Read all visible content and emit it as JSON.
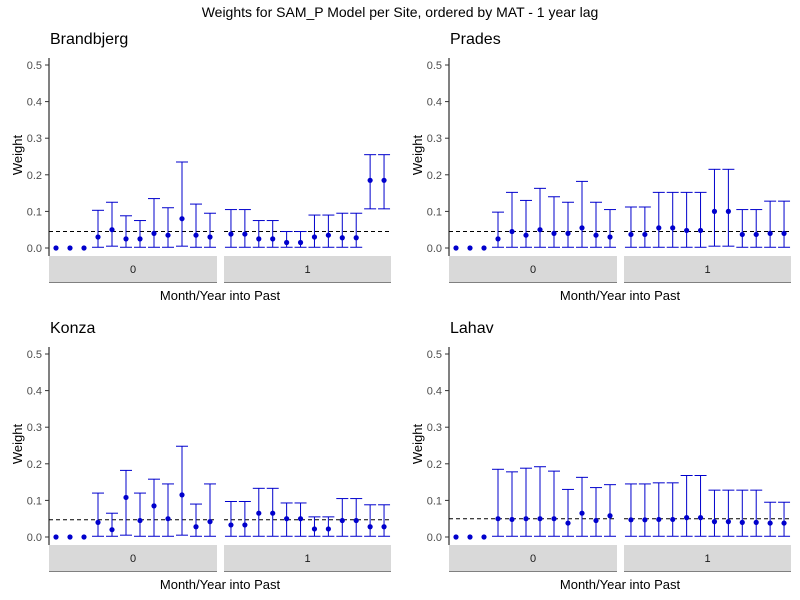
{
  "title": "Weights for SAM_P Model per Site, ordered by MAT - 1 year lag",
  "colors": {
    "point": "#0000cc",
    "errorbar": "#0000cc",
    "reference_line": "#000000",
    "strip_fill": "#d9d9d9",
    "axis": "#000000",
    "tick_label": "#4d4d4d"
  },
  "chart_data": [
    {
      "type": "scatter",
      "title": "Brandbjerg",
      "xlabel": "Month/Year into Past",
      "ylabel": "Weight",
      "ylim": [
        0,
        0.5
      ],
      "yticks": [
        0.0,
        0.1,
        0.2,
        0.3,
        0.4,
        0.5
      ],
      "ytick_labels": [
        "0.0",
        "0.1",
        "0.2",
        "0.3",
        "0.4",
        "0.5"
      ],
      "reference_line": 0.045,
      "grid": false,
      "facets": [
        {
          "strip": "0",
          "mean": [
            0,
            0,
            0,
            0.03,
            0.05,
            0.025,
            0.025,
            0.04,
            0.035,
            0.08,
            0.035,
            0.03
          ],
          "lower": [
            0,
            0,
            0,
            0.002,
            0.005,
            0.002,
            0.002,
            0.002,
            0.002,
            0.005,
            0.002,
            0.002
          ],
          "upper": [
            0,
            0,
            0,
            0.103,
            0.125,
            0.088,
            0.075,
            0.135,
            0.11,
            0.235,
            0.12,
            0.095
          ]
        },
        {
          "strip": "1",
          "mean": [
            0.038,
            0.038,
            0.025,
            0.025,
            0.015,
            0.015,
            0.03,
            0.035,
            0.028,
            0.028,
            0.185,
            0.185
          ],
          "lower": [
            0.002,
            0.002,
            0.002,
            0.002,
            0.002,
            0.002,
            0.002,
            0.002,
            0.002,
            0.002,
            0.107,
            0.107
          ],
          "upper": [
            0.105,
            0.105,
            0.075,
            0.075,
            0.045,
            0.045,
            0.09,
            0.09,
            0.095,
            0.095,
            0.255,
            0.255
          ]
        }
      ]
    },
    {
      "type": "scatter",
      "title": "Prades",
      "xlabel": "Month/Year into Past",
      "ylabel": "Weight",
      "ylim": [
        0,
        0.5
      ],
      "yticks": [
        0.0,
        0.1,
        0.2,
        0.3,
        0.4,
        0.5
      ],
      "ytick_labels": [
        "0.0",
        "0.1",
        "0.2",
        "0.3",
        "0.4",
        "0.5"
      ],
      "reference_line": 0.045,
      "grid": false,
      "facets": [
        {
          "strip": "0",
          "mean": [
            0,
            0,
            0,
            0.025,
            0.045,
            0.035,
            0.05,
            0.04,
            0.04,
            0.055,
            0.035,
            0.03
          ],
          "lower": [
            0,
            0,
            0,
            0.002,
            0.002,
            0.002,
            0.002,
            0.002,
            0.002,
            0.002,
            0.002,
            0.002
          ],
          "upper": [
            0,
            0,
            0,
            0.098,
            0.152,
            0.13,
            0.163,
            0.14,
            0.125,
            0.182,
            0.125,
            0.105
          ]
        },
        {
          "strip": "1",
          "mean": [
            0.037,
            0.037,
            0.055,
            0.055,
            0.048,
            0.048,
            0.1,
            0.1,
            0.037,
            0.037,
            0.04,
            0.04
          ],
          "lower": [
            0.002,
            0.002,
            0.002,
            0.002,
            0.002,
            0.002,
            0.005,
            0.005,
            0.002,
            0.002,
            0.002,
            0.002
          ],
          "upper": [
            0.112,
            0.112,
            0.152,
            0.152,
            0.152,
            0.152,
            0.215,
            0.215,
            0.105,
            0.105,
            0.128,
            0.128
          ]
        }
      ]
    },
    {
      "type": "scatter",
      "title": "Konza",
      "xlabel": "Month/Year into Past",
      "ylabel": "Weight",
      "ylim": [
        0,
        0.5
      ],
      "yticks": [
        0.0,
        0.1,
        0.2,
        0.3,
        0.4,
        0.5
      ],
      "ytick_labels": [
        "0.0",
        "0.1",
        "0.2",
        "0.3",
        "0.4",
        "0.5"
      ],
      "reference_line": 0.047,
      "grid": false,
      "facets": [
        {
          "strip": "0",
          "mean": [
            0,
            0,
            0,
            0.04,
            0.02,
            0.108,
            0.045,
            0.085,
            0.05,
            0.115,
            0.028,
            0.042
          ],
          "lower": [
            0,
            0,
            0,
            0.002,
            0.002,
            0.005,
            0.002,
            0.002,
            0.002,
            0.005,
            0.002,
            0.002
          ],
          "upper": [
            0,
            0,
            0,
            0.12,
            0.065,
            0.182,
            0.12,
            0.158,
            0.145,
            0.248,
            0.09,
            0.145
          ]
        },
        {
          "strip": "1",
          "mean": [
            0.033,
            0.033,
            0.065,
            0.065,
            0.05,
            0.05,
            0.022,
            0.022,
            0.045,
            0.045,
            0.028,
            0.028
          ],
          "lower": [
            0.002,
            0.002,
            0.002,
            0.002,
            0.002,
            0.002,
            0.002,
            0.002,
            0.002,
            0.002,
            0.002,
            0.002
          ],
          "upper": [
            0.097,
            0.097,
            0.133,
            0.133,
            0.093,
            0.093,
            0.055,
            0.055,
            0.105,
            0.105,
            0.088,
            0.088
          ]
        }
      ]
    },
    {
      "type": "scatter",
      "title": "Lahav",
      "xlabel": "Month/Year into Past",
      "ylabel": "Weight",
      "ylim": [
        0,
        0.5
      ],
      "yticks": [
        0.0,
        0.1,
        0.2,
        0.3,
        0.4,
        0.5
      ],
      "ytick_labels": [
        "0.0",
        "0.1",
        "0.2",
        "0.3",
        "0.4",
        "0.5"
      ],
      "reference_line": 0.05,
      "grid": false,
      "facets": [
        {
          "strip": "0",
          "mean": [
            0,
            0,
            0,
            0.05,
            0.048,
            0.05,
            0.05,
            0.05,
            0.038,
            0.065,
            0.045,
            0.058
          ],
          "lower": [
            0,
            0,
            0,
            0.002,
            0.002,
            0.002,
            0.002,
            0.002,
            0.002,
            0.002,
            0.002,
            0.002
          ],
          "upper": [
            0,
            0,
            0,
            0.185,
            0.178,
            0.188,
            0.192,
            0.18,
            0.13,
            0.163,
            0.135,
            0.143
          ]
        },
        {
          "strip": "1",
          "mean": [
            0.047,
            0.047,
            0.048,
            0.048,
            0.053,
            0.053,
            0.042,
            0.042,
            0.04,
            0.04,
            0.038,
            0.038
          ],
          "lower": [
            0.002,
            0.002,
            0.002,
            0.002,
            0.002,
            0.002,
            0.002,
            0.002,
            0.002,
            0.002,
            0.002,
            0.002
          ],
          "upper": [
            0.145,
            0.145,
            0.148,
            0.148,
            0.168,
            0.168,
            0.128,
            0.128,
            0.128,
            0.128,
            0.095,
            0.095
          ]
        }
      ]
    }
  ]
}
